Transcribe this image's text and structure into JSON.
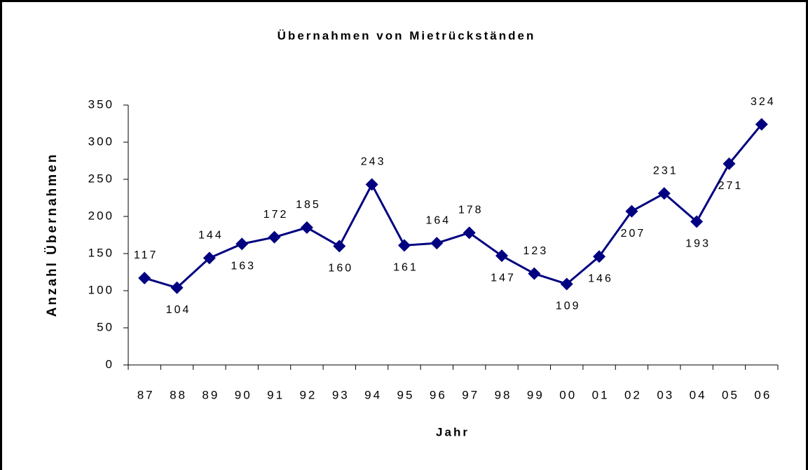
{
  "chart_data": {
    "type": "line",
    "title": "Übernahmen von Mietrückständen",
    "x_label": "Jahr",
    "y_label": "Anzahl Übernahmen",
    "categories": [
      "87",
      "88",
      "89",
      "90",
      "91",
      "92",
      "93",
      "94",
      "95",
      "96",
      "97",
      "98",
      "99",
      "00",
      "01",
      "02",
      "03",
      "04",
      "05",
      "06"
    ],
    "series": [
      {
        "name": "Übernahmen",
        "color": "#000080",
        "values": [
          117,
          104,
          144,
          163,
          172,
          185,
          160,
          243,
          161,
          164,
          178,
          147,
          123,
          109,
          146,
          207,
          231,
          193,
          271,
          324
        ]
      }
    ],
    "ylim": [
      0,
      350
    ],
    "yticks": [
      0,
      50,
      100,
      150,
      200,
      250,
      300,
      350
    ],
    "grid": false,
    "legend": false
  }
}
